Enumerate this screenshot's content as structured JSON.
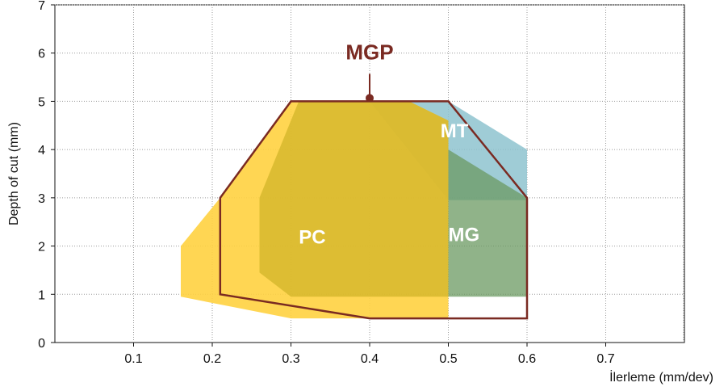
{
  "chart_data": {
    "type": "area",
    "xlabel": "İlerleme (mm/dev)",
    "ylabel": "Depth of cut (mm)",
    "xlim": [
      0,
      0.8
    ],
    "ylim": [
      0,
      7
    ],
    "x_ticks": [
      0.1,
      0.2,
      0.3,
      0.4,
      0.5,
      0.6,
      0.7
    ],
    "x_tick_labels": [
      "0.1",
      "0.2",
      "0.3",
      "0.4",
      "0.5",
      "0.6",
      "0.7"
    ],
    "y_ticks": [
      0,
      1,
      2,
      3,
      4,
      5,
      6,
      7
    ],
    "y_tick_labels": [
      "0",
      "1",
      "2",
      "3",
      "4",
      "5",
      "6",
      "7"
    ],
    "grid": "dotted",
    "regions": [
      {
        "name": "MT",
        "color": "#8ec3cf",
        "opacity": 0.85,
        "label_at": {
          "x": 0.49,
          "y": 4.25
        },
        "polygon": [
          [
            0.4,
            5.0
          ],
          [
            0.5,
            5.0
          ],
          [
            0.6,
            4.0
          ],
          [
            0.6,
            2.95
          ],
          [
            0.5,
            2.95
          ]
        ]
      },
      {
        "name": "MG",
        "color": "#6b9a62",
        "opacity": 0.75,
        "label_at": {
          "x": 0.5,
          "y": 2.1
        },
        "polygon": [
          [
            0.5,
            4.0
          ],
          [
            0.6,
            3.0
          ],
          [
            0.6,
            0.95
          ],
          [
            0.5,
            0.95
          ]
        ]
      },
      {
        "name": "PC",
        "color": "#ffd140",
        "opacity": 0.9,
        "label_at": {
          "x": 0.31,
          "y": 2.05
        },
        "polygon": [
          [
            0.3,
            5.0
          ],
          [
            0.45,
            5.0
          ],
          [
            0.5,
            4.6
          ],
          [
            0.5,
            0.5
          ],
          [
            0.3,
            0.5
          ],
          [
            0.16,
            0.95
          ],
          [
            0.16,
            2.0
          ],
          [
            0.21,
            3.0
          ]
        ]
      },
      {
        "name": "PC-overlap",
        "color": "#cfb227",
        "opacity": 0.7,
        "polygon": [
          [
            0.31,
            5.0
          ],
          [
            0.45,
            5.0
          ],
          [
            0.5,
            4.6
          ],
          [
            0.5,
            0.95
          ],
          [
            0.3,
            0.95
          ],
          [
            0.26,
            1.45
          ],
          [
            0.26,
            3.0
          ]
        ]
      }
    ],
    "outline": {
      "name": "MGP",
      "color": "#7a2a22",
      "polygon": [
        [
          0.3,
          5.0
        ],
        [
          0.5,
          5.0
        ],
        [
          0.6,
          3.0
        ],
        [
          0.6,
          0.5
        ],
        [
          0.4,
          0.5
        ],
        [
          0.21,
          1.0
        ],
        [
          0.21,
          3.0
        ]
      ],
      "marker": {
        "x": 0.4,
        "y": 5.0
      },
      "label_at": {
        "x": 0.4,
        "y": 6.0
      }
    }
  },
  "labels": {
    "mgp": "MGP",
    "mt": "MT",
    "mg": "MG",
    "pc": "PC"
  }
}
